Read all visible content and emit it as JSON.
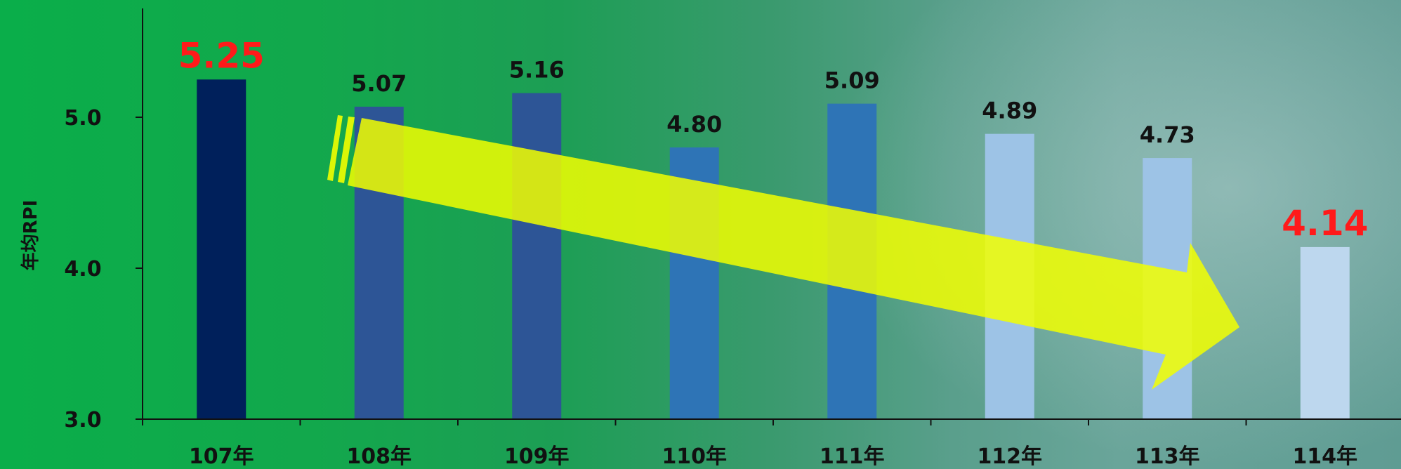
{
  "chart_data": {
    "type": "bar",
    "title": "",
    "xlabel": "",
    "ylabel": "年均RPI",
    "categories": [
      "107年",
      "108年",
      "109年",
      "110年",
      "111年",
      "112年",
      "113年",
      "114年"
    ],
    "values": [
      5.25,
      5.07,
      5.16,
      4.8,
      5.09,
      4.89,
      4.73,
      4.14
    ],
    "data_labels": [
      "5.25",
      "5.07",
      "5.16",
      "4.80",
      "5.09",
      "4.89",
      "4.73",
      "4.14"
    ],
    "highlighted": [
      "107年",
      "114年"
    ],
    "ylim": [
      3.0,
      6.0
    ],
    "yticks": [
      3.0,
      4.0,
      5.0
    ],
    "ytick_labels": [
      "3.0",
      "4.0",
      "5.0"
    ],
    "grid": false,
    "bar_colors": [
      "#00205b",
      "#2d5596",
      "#2d5596",
      "#2e74b6",
      "#2e74b6",
      "#9dc3e6",
      "#9dc3e6",
      "#bdd7ee"
    ],
    "highlight_color": "#ff1a1a",
    "annotation": "downward trend arrow (yellow) from 108年 to 113年"
  }
}
